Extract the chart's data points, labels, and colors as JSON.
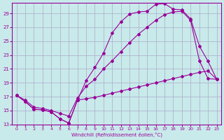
{
  "xlabel": "Windchill (Refroidissement éolien,°C)",
  "bg_color": "#c8eaea",
  "line_color": "#990099",
  "grid_color": "#aaaacc",
  "xlim": [
    -0.5,
    23.5
  ],
  "ylim": [
    13,
    30.5
  ],
  "yticks": [
    13,
    15,
    17,
    19,
    21,
    23,
    25,
    27,
    29
  ],
  "xticks": [
    0,
    1,
    2,
    3,
    4,
    5,
    6,
    7,
    8,
    9,
    10,
    11,
    12,
    13,
    14,
    15,
    16,
    17,
    18,
    19,
    20,
    21,
    22,
    23
  ],
  "line1_x": [
    0,
    1,
    2,
    3,
    4,
    5,
    6,
    7,
    8,
    9,
    10,
    11,
    12,
    13,
    14,
    15,
    16,
    17,
    18,
    19,
    20,
    21,
    22,
    23
  ],
  "line1_y": [
    17.2,
    16.3,
    15.2,
    15.1,
    14.8,
    13.8,
    13.2,
    16.5,
    19.3,
    21.2,
    23.3,
    26.2,
    27.8,
    28.9,
    29.2,
    29.3,
    30.3,
    30.4,
    29.6,
    29.5,
    28.2,
    24.3,
    22.1,
    19.5
  ],
  "line2_x": [
    0,
    1,
    2,
    3,
    4,
    5,
    6,
    7,
    8,
    9,
    10,
    11,
    12,
    13,
    14,
    15,
    16,
    17,
    18,
    19,
    20,
    21,
    22,
    23
  ],
  "line2_y": [
    17.2,
    16.5,
    15.5,
    15.3,
    15.0,
    14.6,
    14.2,
    16.8,
    18.5,
    19.5,
    21.0,
    22.2,
    23.5,
    24.8,
    26.0,
    27.0,
    28.0,
    28.8,
    29.2,
    29.3,
    28.0,
    22.2,
    19.6,
    19.5
  ],
  "line3_x": [
    0,
    1,
    2,
    3,
    4,
    5,
    6,
    7,
    8,
    9,
    10,
    11,
    12,
    13,
    14,
    15,
    16,
    17,
    18,
    19,
    20,
    21,
    22,
    23
  ],
  "line3_y": [
    17.2,
    16.3,
    15.2,
    15.1,
    14.8,
    13.8,
    13.2,
    16.5,
    16.7,
    16.9,
    17.2,
    17.5,
    17.8,
    18.1,
    18.4,
    18.7,
    19.0,
    19.3,
    19.6,
    19.9,
    20.2,
    20.5,
    20.7,
    19.5
  ]
}
